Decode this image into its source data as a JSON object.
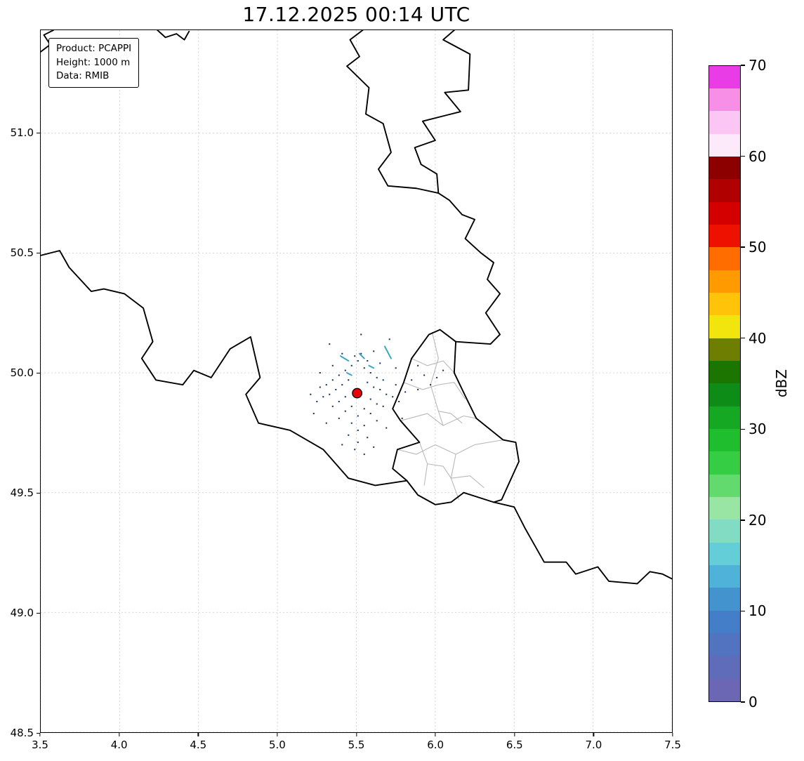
{
  "title": "17.12.2025 00:14 UTC",
  "info_box": {
    "lines": [
      "Product: PCAPPI",
      "Height: 1000 m",
      "Data: RMIB"
    ]
  },
  "axes": {
    "x_range": [
      3.5,
      7.5
    ],
    "y_range": [
      48.5,
      51.43
    ],
    "x_ticks": [
      "3.5",
      "4.0",
      "4.5",
      "5.0",
      "5.5",
      "6.0",
      "6.5",
      "7.0",
      "7.5"
    ],
    "y_ticks": [
      "48.5",
      "49.0",
      "49.5",
      "50.0",
      "50.5",
      "51.0"
    ],
    "grid_style": "dashed"
  },
  "colorbar": {
    "label": "dBZ",
    "min": 0,
    "max": 70,
    "step": 2.5,
    "ticks": [
      0,
      10,
      20,
      30,
      40,
      50,
      60,
      70
    ],
    "colors_bottom_to_top": [
      "#6b67b4",
      "#5e6cba",
      "#5173c0",
      "#457ec8",
      "#4393cf",
      "#4fb2d8",
      "#63cdd8",
      "#82dcc4",
      "#99e6a4",
      "#63da6e",
      "#35cd44",
      "#1fbe2f",
      "#15a823",
      "#0d8d17",
      "#1c7500",
      "#6e7e00",
      "#f2e50e",
      "#ffc40a",
      "#ff9b00",
      "#ff6d00",
      "#ee1100",
      "#d40000",
      "#b00000",
      "#8c0000",
      "#fce9f9",
      "#fbc6f3",
      "#f78fe7",
      "#ea3ce6"
    ]
  },
  "map": {
    "background": "#ffffff",
    "border_color": "#000000",
    "subdivision_color": "#b9b9b9",
    "grid_color": "#cfcfcf"
  },
  "radar": {
    "site_marker": {
      "lon": 5.505,
      "lat": 49.915,
      "color": "#e8000b",
      "edge_color": "#000000"
    },
    "echo_color": "#16335e",
    "streak_color": "#3aa8c0",
    "echo_points": [
      [
        5.51,
        50.05
      ],
      [
        5.47,
        50.03
      ],
      [
        5.55,
        50.02
      ],
      [
        5.43,
        50.01
      ],
      [
        5.59,
        50.0
      ],
      [
        5.39,
        49.99
      ],
      [
        5.63,
        49.98
      ],
      [
        5.35,
        49.97
      ],
      [
        5.67,
        49.97
      ],
      [
        5.31,
        49.95
      ],
      [
        5.45,
        49.97
      ],
      [
        5.57,
        49.96
      ],
      [
        5.41,
        49.95
      ],
      [
        5.61,
        49.94
      ],
      [
        5.37,
        49.93
      ],
      [
        5.65,
        49.93
      ],
      [
        5.33,
        49.91
      ],
      [
        5.69,
        49.91
      ],
      [
        5.29,
        49.9
      ],
      [
        5.73,
        49.9
      ],
      [
        5.43,
        49.9
      ],
      [
        5.59,
        49.89
      ],
      [
        5.39,
        49.88
      ],
      [
        5.63,
        49.87
      ],
      [
        5.35,
        49.86
      ],
      [
        5.67,
        49.86
      ],
      [
        5.47,
        49.86
      ],
      [
        5.55,
        49.85
      ],
      [
        5.43,
        49.84
      ],
      [
        5.59,
        49.83
      ],
      [
        5.51,
        49.82
      ],
      [
        5.39,
        49.81
      ],
      [
        5.63,
        49.8
      ],
      [
        5.47,
        49.79
      ],
      [
        5.55,
        49.78
      ],
      [
        5.51,
        49.76
      ],
      [
        5.45,
        49.74
      ],
      [
        5.57,
        49.73
      ],
      [
        5.51,
        49.71
      ],
      [
        5.41,
        49.7
      ],
      [
        5.61,
        49.69
      ],
      [
        5.25,
        49.88
      ],
      [
        5.77,
        49.88
      ],
      [
        5.27,
        49.94
      ],
      [
        5.75,
        49.95
      ],
      [
        5.21,
        49.91
      ],
      [
        5.81,
        49.92
      ],
      [
        5.49,
        50.07
      ],
      [
        5.53,
        50.08
      ],
      [
        5.57,
        50.05
      ],
      [
        5.85,
        49.97
      ],
      [
        5.89,
        49.93
      ],
      [
        5.93,
        49.99
      ],
      [
        5.97,
        49.95
      ],
      [
        6.01,
        49.98
      ],
      [
        5.31,
        49.79
      ],
      [
        5.69,
        49.77
      ],
      [
        5.23,
        49.83
      ],
      [
        5.79,
        49.81
      ],
      [
        5.35,
        50.03
      ],
      [
        5.65,
        50.04
      ],
      [
        5.27,
        50.0
      ],
      [
        5.75,
        50.02
      ],
      [
        5.49,
        49.68
      ],
      [
        5.55,
        49.66
      ],
      [
        5.61,
        50.09
      ],
      [
        5.41,
        50.08
      ],
      [
        5.89,
        50.03
      ],
      [
        6.05,
        50.01
      ],
      [
        5.33,
        50.12
      ],
      [
        5.71,
        50.14
      ],
      [
        5.53,
        50.16
      ]
    ],
    "streaks": [
      [
        [
          5.4,
          50.07
        ],
        [
          5.45,
          50.05
        ]
      ],
      [
        [
          5.52,
          50.08
        ],
        [
          5.55,
          50.06
        ]
      ],
      [
        [
          5.68,
          50.11
        ],
        [
          5.72,
          50.06
        ]
      ],
      [
        [
          5.44,
          50.0
        ],
        [
          5.47,
          49.99
        ]
      ],
      [
        [
          5.58,
          50.03
        ],
        [
          5.61,
          50.02
        ]
      ]
    ]
  }
}
